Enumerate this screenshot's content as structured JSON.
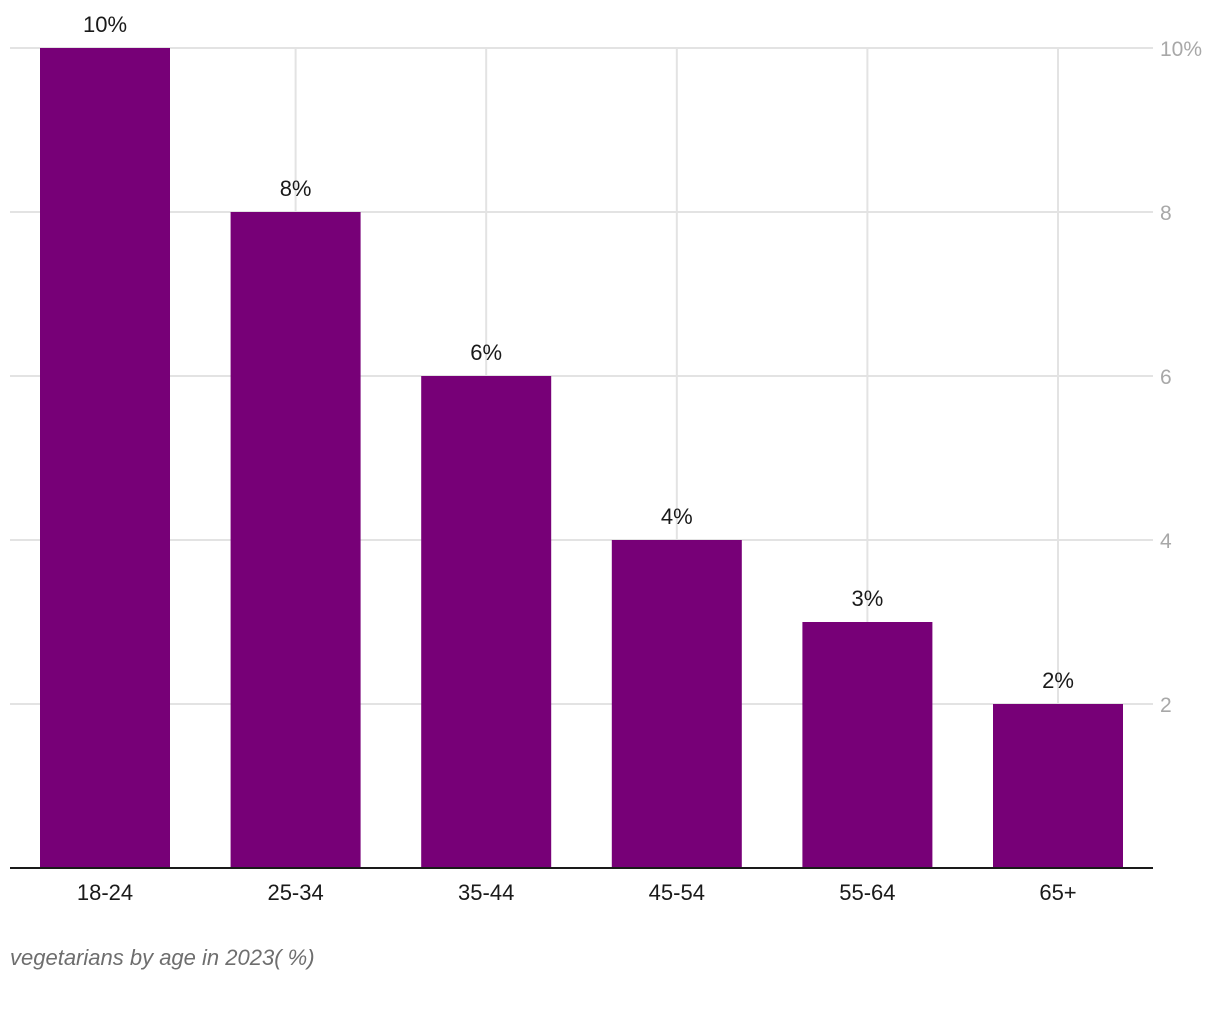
{
  "chart_data": {
    "type": "bar",
    "categories": [
      "18-24",
      "25-34",
      "35-44",
      "45-54",
      "55-64",
      "65+"
    ],
    "values": [
      10,
      8,
      6,
      4,
      3,
      2
    ],
    "data_labels": [
      "10%",
      "8%",
      "6%",
      "4%",
      "3%",
      "2%"
    ],
    "y_ticks": [
      2,
      4,
      6,
      8,
      10
    ],
    "y_tick_labels": [
      "2",
      "4",
      "6",
      "8",
      "10%"
    ],
    "ylim": [
      0,
      10
    ],
    "y_axis_side": "right",
    "grid": true,
    "bar_color": "#770077",
    "caption": "vegetarians by age in 2023( %)"
  }
}
